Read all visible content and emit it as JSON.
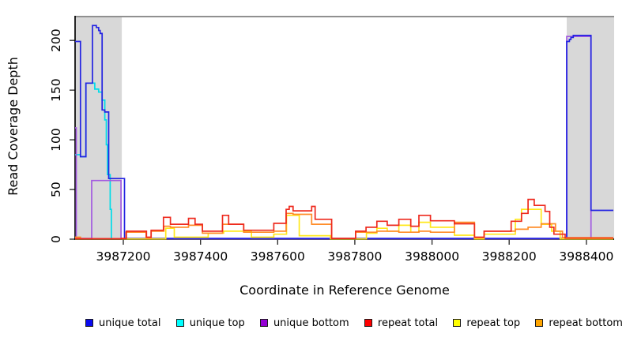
{
  "figure": {
    "xlabel": "Coordinate in Reference Genome",
    "ylabel": "Read Coverage Depth"
  },
  "legend": {
    "items": [
      {
        "label": "unique total",
        "color": "#0a0af0"
      },
      {
        "label": "unique top",
        "color": "#00ffff"
      },
      {
        "label": "unique bottom",
        "color": "#9400d3"
      },
      {
        "label": "repeat total",
        "color": "#ff0000"
      },
      {
        "label": "repeat top",
        "color": "#ffff00"
      },
      {
        "label": "repeat bottom",
        "color": "#ffa500"
      }
    ]
  },
  "chart_data": {
    "type": "line",
    "subtype": "step-coverage",
    "title": "",
    "xlabel": "Coordinate in Reference Genome",
    "ylabel": "Read Coverage Depth",
    "x_range": [
      3987075,
      3988472
    ],
    "y_range": [
      0,
      224
    ],
    "x_ticks": [
      3987200,
      3987400,
      3987600,
      3987800,
      3988000,
      3988200,
      3988400
    ],
    "y_ticks": [
      0,
      50,
      100,
      150,
      200
    ],
    "grid": false,
    "legend_position": "bottom",
    "shading_color": "#d8d8d8",
    "top_border_color": "#909090",
    "axis_color": "#000000",
    "shaded_regions": [
      {
        "start": 3987077,
        "end": 3987196
      },
      {
        "start": 3988349,
        "end": 3988472
      }
    ],
    "series": [
      {
        "name": "unique top",
        "color": "#00dce8",
        "points": [
          [
            3987075,
            85
          ],
          [
            3987089,
            83
          ],
          [
            3987103,
            157
          ],
          [
            3987126,
            151
          ],
          [
            3987136,
            148
          ],
          [
            3987145,
            140
          ],
          [
            3987152,
            120
          ],
          [
            3987156,
            95
          ],
          [
            3987159,
            65
          ],
          [
            3987166,
            30
          ],
          [
            3987169,
            0.5
          ],
          [
            3988470,
            0.5
          ]
        ]
      },
      {
        "name": "unique bottom",
        "color": "#a25ae0",
        "points": [
          [
            3987075,
            112
          ],
          [
            3987078,
            0.7
          ],
          [
            3987118,
            59
          ],
          [
            3987194,
            0.4
          ],
          [
            3988349,
            204
          ],
          [
            3988412,
            0.4
          ],
          [
            3988470,
            0.4
          ]
        ]
      },
      {
        "name": "unique total",
        "color": "#2323e2",
        "points": [
          [
            3987075,
            199
          ],
          [
            3987089,
            83
          ],
          [
            3987103,
            157
          ],
          [
            3987120,
            215
          ],
          [
            3987130,
            213
          ],
          [
            3987136,
            210
          ],
          [
            3987140,
            207
          ],
          [
            3987145,
            130
          ],
          [
            3987152,
            128
          ],
          [
            3987162,
            61
          ],
          [
            3987203,
            0.8
          ],
          [
            3988349,
            199
          ],
          [
            3988356,
            201
          ],
          [
            3988360,
            203
          ],
          [
            3988366,
            205
          ],
          [
            3988412,
            29
          ],
          [
            3988470,
            29
          ]
        ]
      },
      {
        "name": "repeat top",
        "color": "#ffe81a",
        "points": [
          [
            3987075,
            0.3
          ],
          [
            3987310,
            11
          ],
          [
            3987332,
            2
          ],
          [
            3987420,
            6
          ],
          [
            3987460,
            8
          ],
          [
            3987532,
            2
          ],
          [
            3987590,
            5
          ],
          [
            3987623,
            24
          ],
          [
            3987656,
            3.5
          ],
          [
            3987737,
            0.3
          ],
          [
            3987830,
            6
          ],
          [
            3987857,
            11
          ],
          [
            3987884,
            8
          ],
          [
            3987914,
            14
          ],
          [
            3987945,
            7
          ],
          [
            3987966,
            17
          ],
          [
            3987996,
            12
          ],
          [
            3988058,
            4
          ],
          [
            3988110,
            0.3
          ],
          [
            3988135,
            5
          ],
          [
            3988216,
            20
          ],
          [
            3988232,
            30
          ],
          [
            3988283,
            15
          ],
          [
            3988310,
            8
          ],
          [
            3988332,
            0.3
          ],
          [
            3988470,
            0.3
          ]
        ]
      },
      {
        "name": "repeat bottom",
        "color": "#ff8c28",
        "points": [
          [
            3987075,
            2
          ],
          [
            3987089,
            0.5
          ],
          [
            3987195,
            0.5
          ],
          [
            3987207,
            7
          ],
          [
            3987259,
            1
          ],
          [
            3987272,
            8
          ],
          [
            3987305,
            13
          ],
          [
            3987322,
            12
          ],
          [
            3987369,
            14
          ],
          [
            3987405,
            6
          ],
          [
            3987457,
            15
          ],
          [
            3987512,
            7
          ],
          [
            3987590,
            8
          ],
          [
            3987622,
            26
          ],
          [
            3987640,
            25
          ],
          [
            3987688,
            15
          ],
          [
            3987740,
            0.6
          ],
          [
            3987802,
            7
          ],
          [
            3987857,
            8
          ],
          [
            3987914,
            7
          ],
          [
            3987966,
            8
          ],
          [
            3987996,
            7
          ],
          [
            3988058,
            17
          ],
          [
            3988110,
            1.5
          ],
          [
            3988135,
            8
          ],
          [
            3988216,
            10
          ],
          [
            3988249,
            12
          ],
          [
            3988283,
            15.5
          ],
          [
            3988320,
            8
          ],
          [
            3988338,
            1.5
          ],
          [
            3988470,
            1.5
          ]
        ]
      },
      {
        "name": "repeat total",
        "color": "#ee2a1e",
        "points": [
          [
            3987075,
            0.5
          ],
          [
            3987195,
            0.8
          ],
          [
            3987208,
            8
          ],
          [
            3987260,
            2
          ],
          [
            3987272,
            9
          ],
          [
            3987304,
            22
          ],
          [
            3987322,
            15
          ],
          [
            3987369,
            21
          ],
          [
            3987386,
            15
          ],
          [
            3987405,
            8
          ],
          [
            3987457,
            24
          ],
          [
            3987473,
            15
          ],
          [
            3987512,
            9
          ],
          [
            3987590,
            16
          ],
          [
            3987622,
            30
          ],
          [
            3987630,
            33
          ],
          [
            3987640,
            28.5
          ],
          [
            3987688,
            33
          ],
          [
            3987697,
            20
          ],
          [
            3987740,
            0.8
          ],
          [
            3987802,
            8
          ],
          [
            3987829,
            12
          ],
          [
            3987857,
            18
          ],
          [
            3987884,
            14
          ],
          [
            3987914,
            20
          ],
          [
            3987945,
            13
          ],
          [
            3987966,
            24
          ],
          [
            3987996,
            18.5
          ],
          [
            3988058,
            15.5
          ],
          [
            3988110,
            2
          ],
          [
            3988135,
            8
          ],
          [
            3988205,
            18
          ],
          [
            3988232,
            26
          ],
          [
            3988249,
            40
          ],
          [
            3988265,
            34
          ],
          [
            3988293,
            28
          ],
          [
            3988305,
            12
          ],
          [
            3988316,
            5
          ],
          [
            3988345,
            1
          ],
          [
            3988470,
            1
          ]
        ]
      }
    ]
  }
}
